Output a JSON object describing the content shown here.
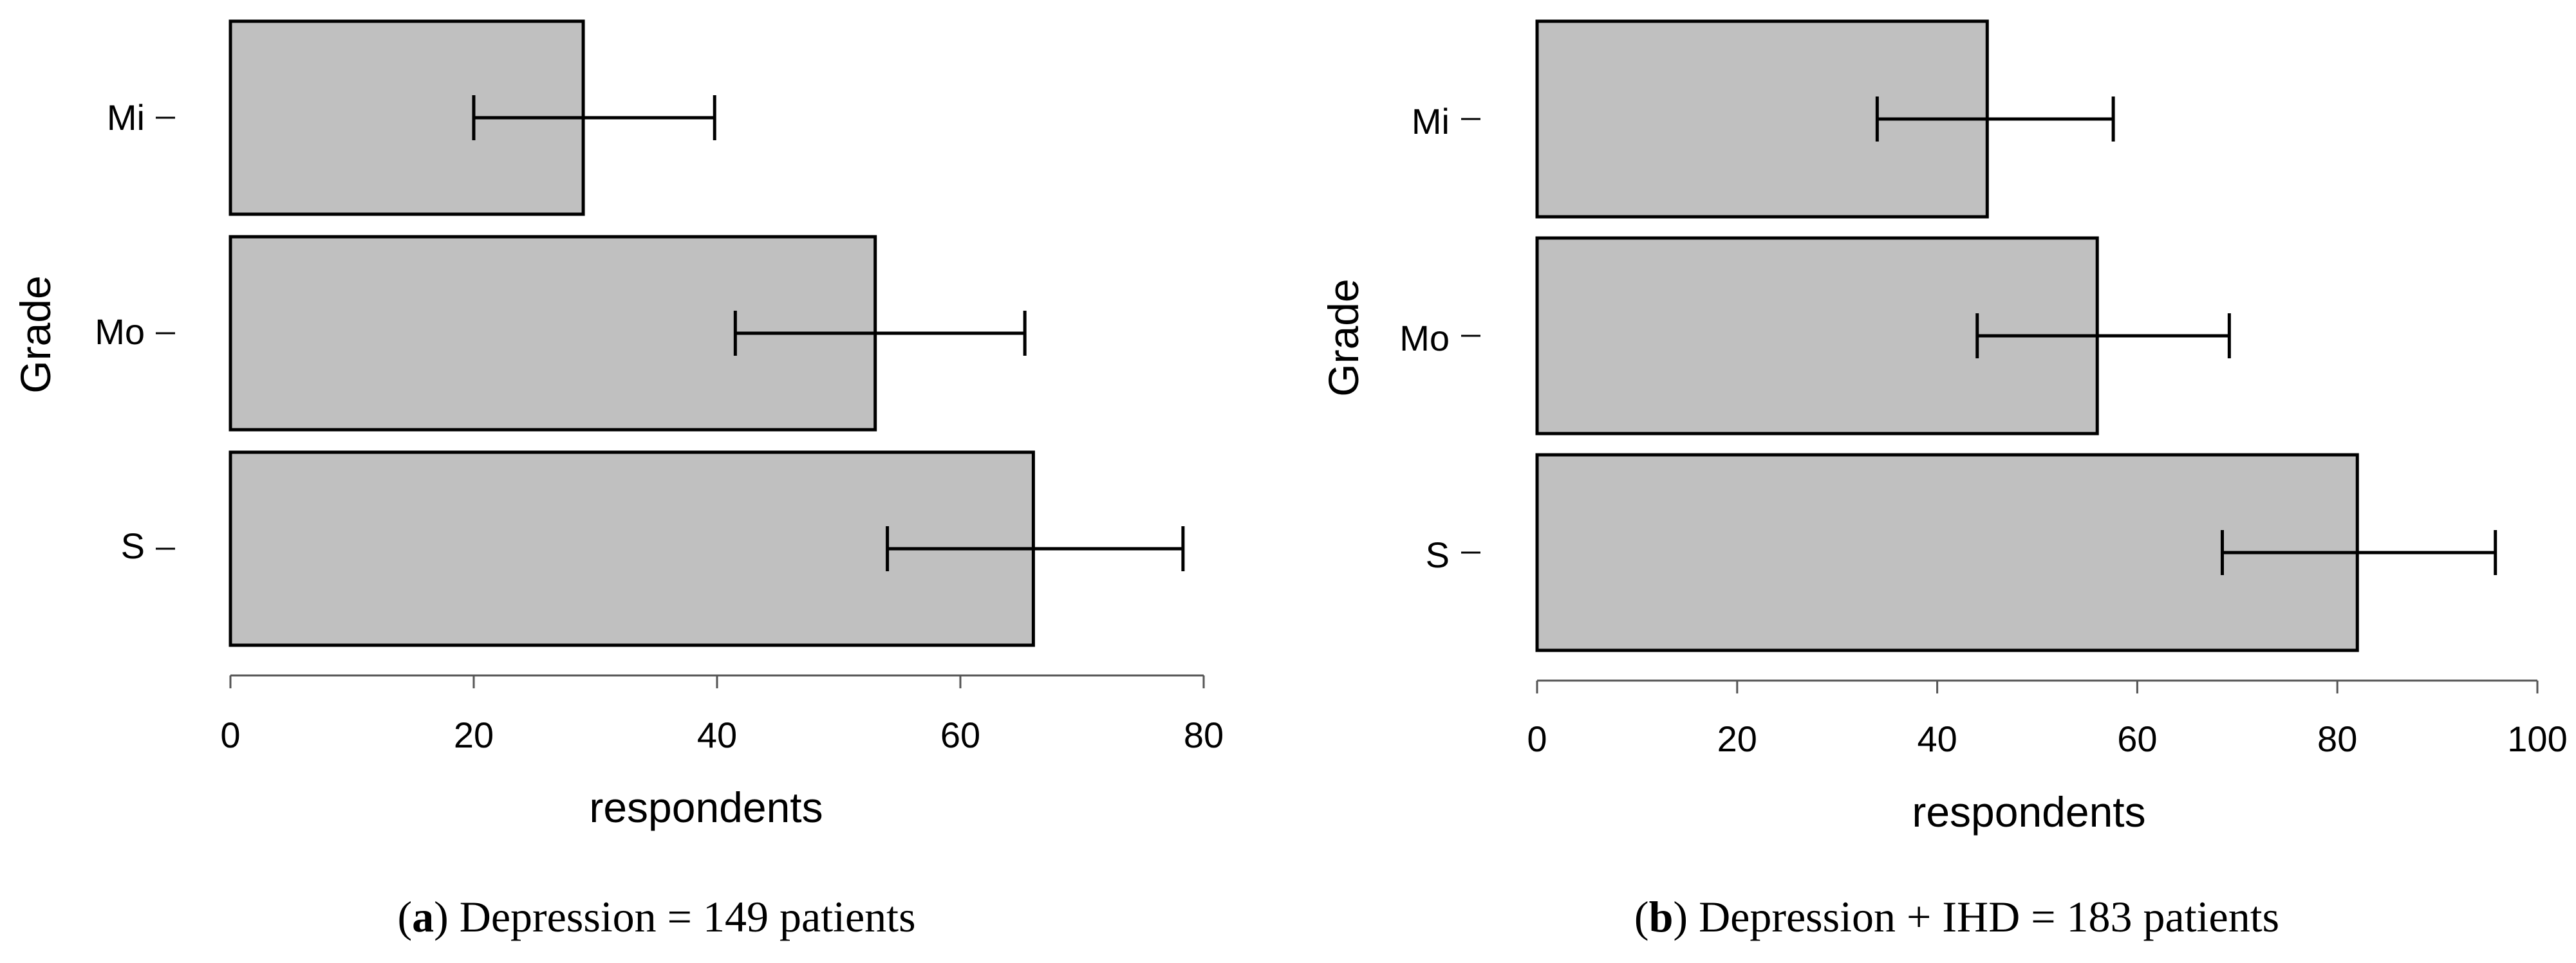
{
  "chart_data": [
    {
      "type": "bar",
      "orientation": "horizontal",
      "panel_label": "a",
      "caption": "Depression = 149 patients",
      "categories": [
        "Mi",
        "Mo",
        "S"
      ],
      "values": [
        29,
        53,
        66
      ],
      "error_bars": [
        [
          20,
          39.8
        ],
        [
          41.5,
          65.3
        ],
        [
          54,
          78.3
        ]
      ],
      "xlabel": "respondents",
      "ylabel": "Grade",
      "xlim": [
        0,
        80
      ],
      "xticks": [
        "0",
        "20",
        "40",
        "60",
        "80"
      ],
      "bar_color": "#c0c0c0",
      "grid": false
    },
    {
      "type": "bar",
      "orientation": "horizontal",
      "panel_label": "b",
      "caption": "Depression + IHD = 183 patients",
      "categories": [
        "Mi",
        "Mo",
        "S"
      ],
      "values": [
        45,
        56,
        82
      ],
      "error_bars": [
        [
          34,
          57.6
        ],
        [
          44,
          69.2
        ],
        [
          68.5,
          95.8
        ]
      ],
      "xlabel": "respondents",
      "ylabel": "Grade",
      "xlim": [
        0,
        100
      ],
      "xticks": [
        "0",
        "20",
        "40",
        "60",
        "80",
        "100"
      ],
      "bar_color": "#c0c0c0",
      "grid": false
    }
  ]
}
